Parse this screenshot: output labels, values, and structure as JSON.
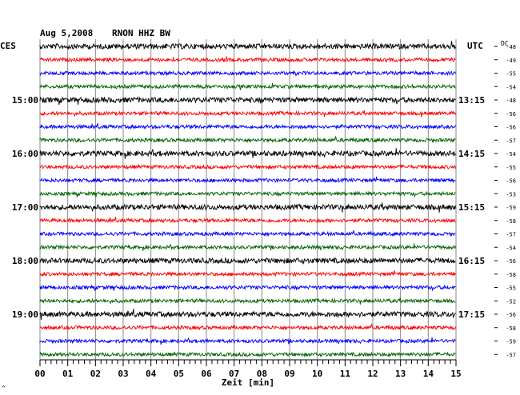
{
  "chart_data": {
    "type": "line",
    "title": "Aug 5,2008",
    "station": "RNON HHZ BW",
    "left_zone": "CES",
    "right_zone": "UTC",
    "dc_label": "DC",
    "xlabel": "Zeit [min]",
    "xlim": [
      0,
      15
    ],
    "x_tick_labels": [
      "00",
      "01",
      "02",
      "03",
      "04",
      "05",
      "06",
      "07",
      "08",
      "09",
      "10",
      "11",
      "12",
      "13",
      "14",
      "15"
    ],
    "grid": true,
    "trace_colors": [
      "#000000",
      "#ff0000",
      "#0000ff",
      "#006400"
    ],
    "left_time_labels": [
      {
        "trace": 4,
        "label": "15:00"
      },
      {
        "trace": 8,
        "label": "16:00"
      },
      {
        "trace": 12,
        "label": "17:00"
      },
      {
        "trace": 16,
        "label": "18:00"
      },
      {
        "trace": 20,
        "label": "19:00"
      }
    ],
    "right_time_labels": [
      {
        "trace": 4,
        "label": "13:15"
      },
      {
        "trace": 8,
        "label": "14:15"
      },
      {
        "trace": 12,
        "label": "15:15"
      },
      {
        "trace": 16,
        "label": "16:15"
      },
      {
        "trace": 20,
        "label": "17:15"
      }
    ],
    "dc_offsets": [
      "-48",
      "-49",
      "-55",
      "-54",
      "-48",
      "-56",
      "-56",
      "-57",
      "-54",
      "-55",
      "-56",
      "-53",
      "-59",
      "-58",
      "-57",
      "-54",
      "-56",
      "-58",
      "-55",
      "-52",
      "-56",
      "-58",
      "-59",
      "-57"
    ]
  },
  "corner_mark": "^"
}
